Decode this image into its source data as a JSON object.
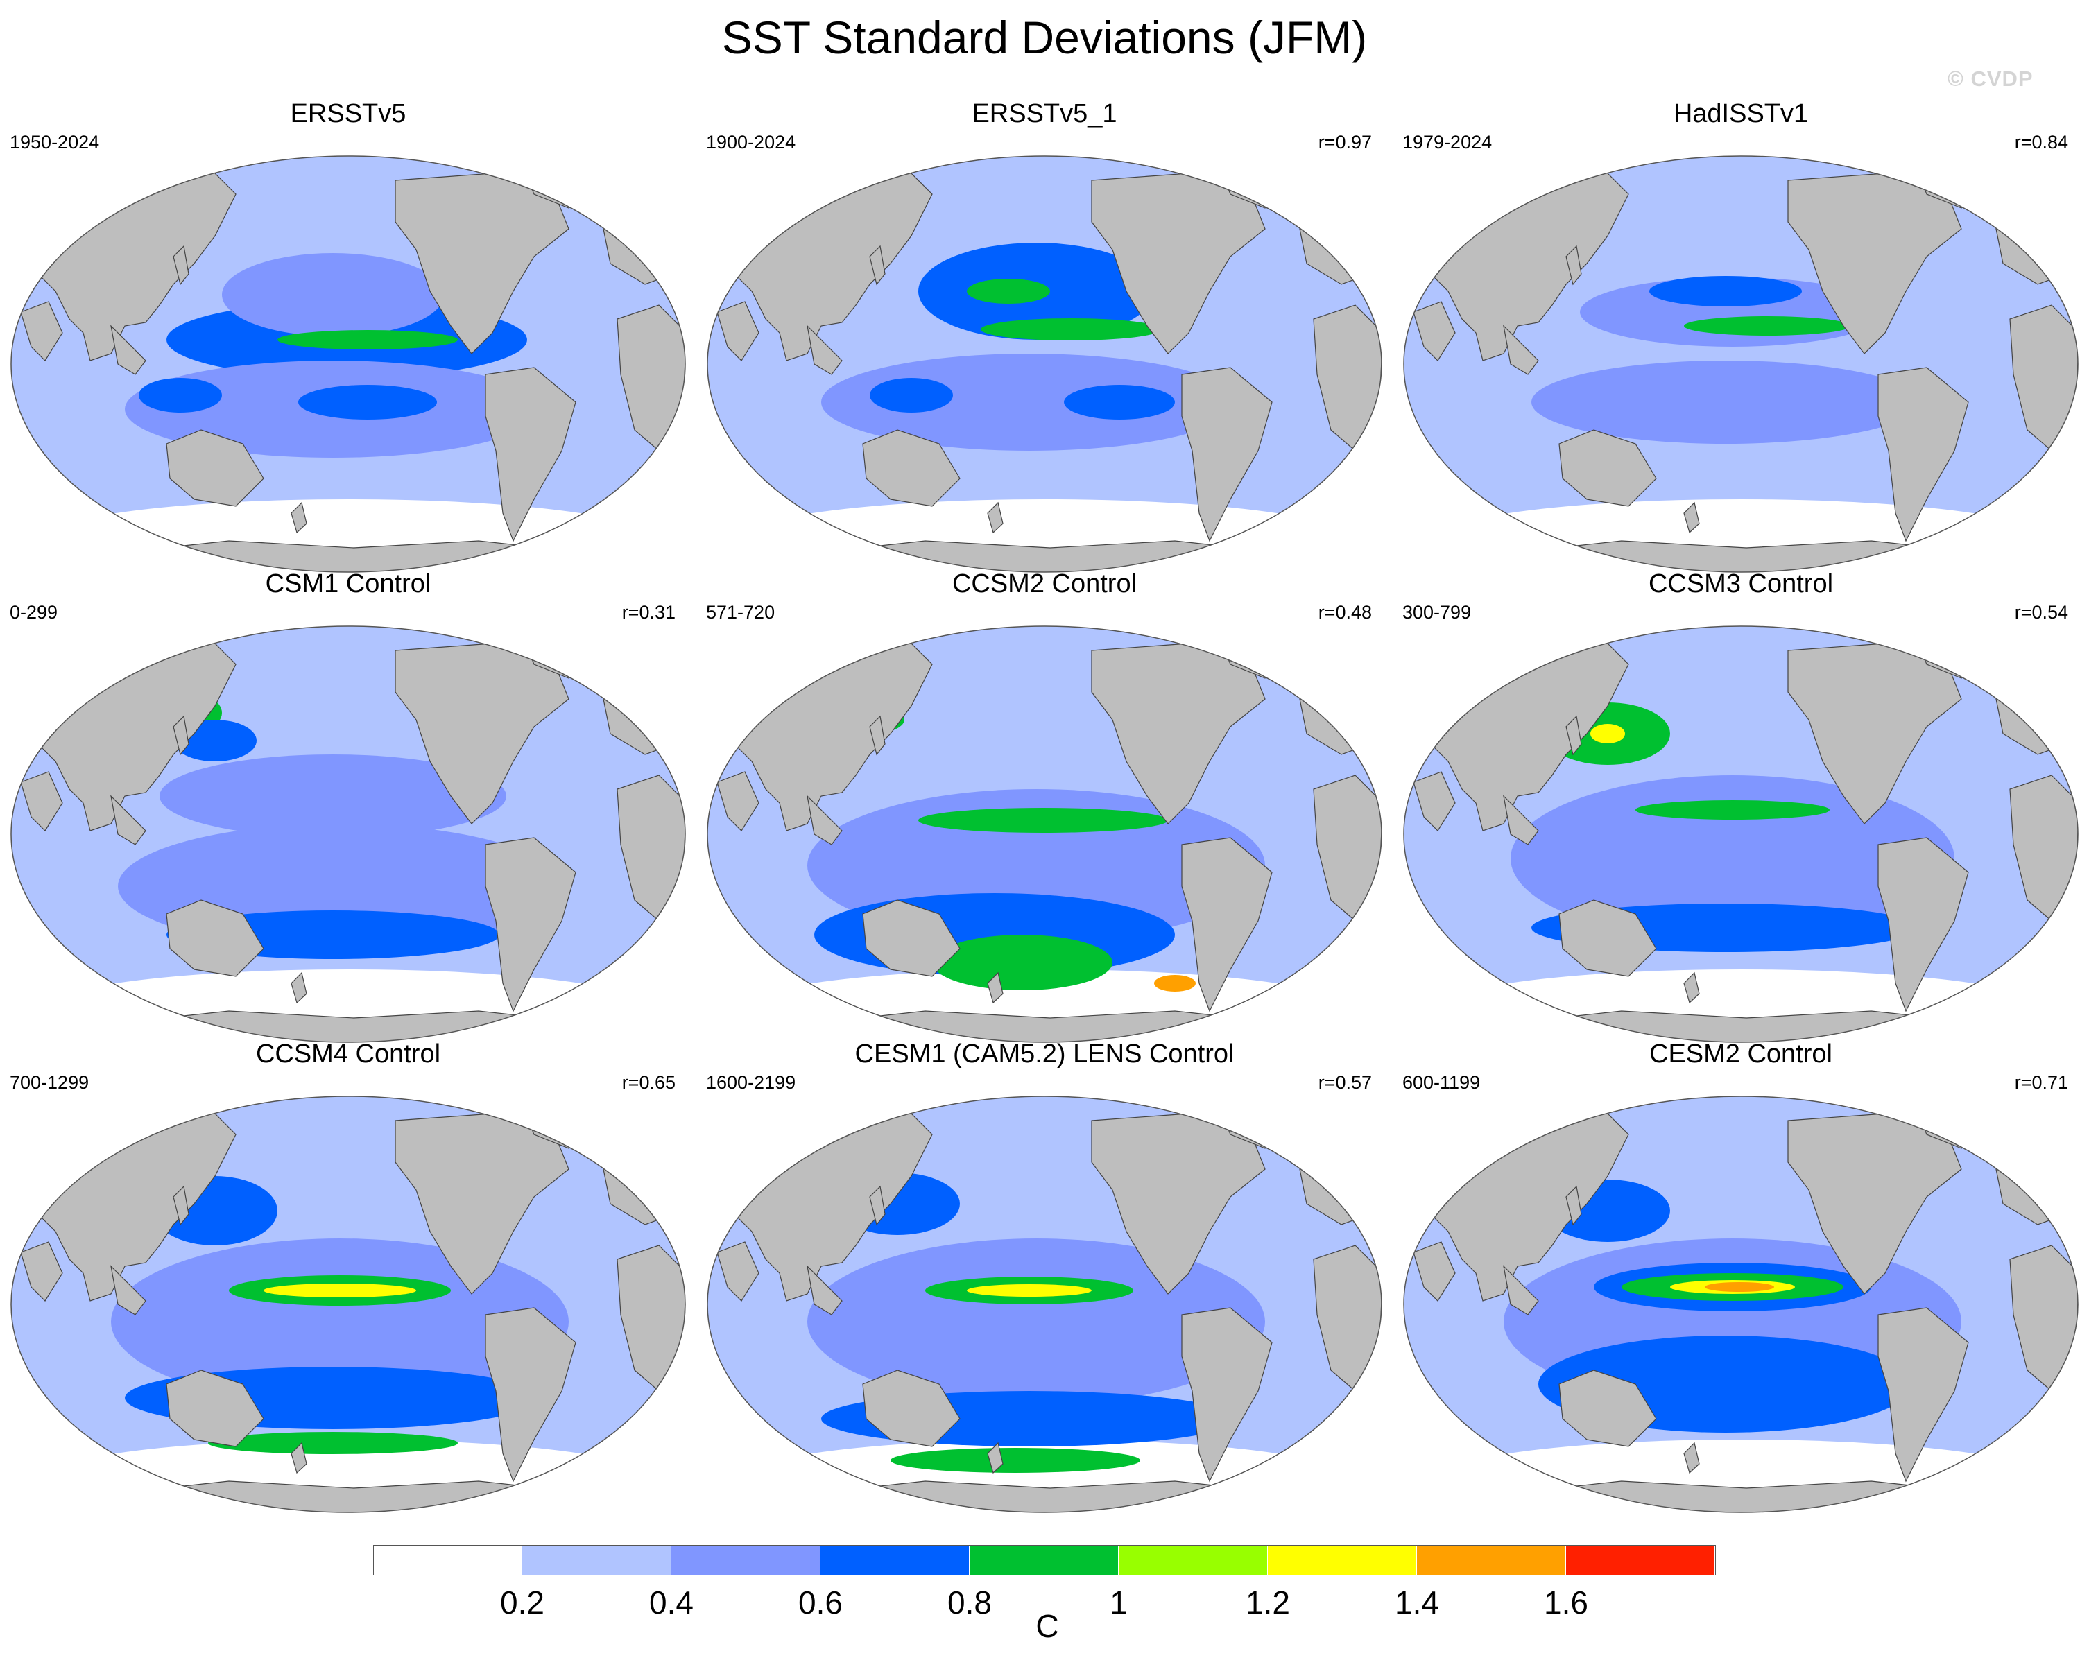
{
  "title": "SST Standard Deviations (JFM)",
  "watermark": "© CVDP",
  "panels": [
    {
      "title": "ERSSTv5",
      "years": "1950-2024",
      "r": ""
    },
    {
      "title": "ERSSTv5_1",
      "years": "1900-2024",
      "r": "r=0.97"
    },
    {
      "title": "HadISSTv1",
      "years": "1979-2024",
      "r": "r=0.84"
    },
    {
      "title": "CSM1 Control",
      "years": "0-299",
      "r": "r=0.31"
    },
    {
      "title": "CCSM2 Control",
      "years": "571-720",
      "r": "r=0.48"
    },
    {
      "title": "CCSM3 Control",
      "years": "300-799",
      "r": "r=0.54"
    },
    {
      "title": "CCSM4 Control",
      "years": "700-1299",
      "r": "r=0.65"
    },
    {
      "title": "CESM1 (CAM5.2) LENS Control",
      "years": "1600-2199",
      "r": "r=0.57"
    },
    {
      "title": "CESM2 Control",
      "years": "600-1199",
      "r": "r=0.71"
    }
  ],
  "colorbar": {
    "levels": [
      "0.2",
      "0.4",
      "0.6",
      "0.8",
      "1",
      "1.2",
      "1.4",
      "1.6"
    ],
    "colors": [
      "#ffffff",
      "#b0c4ff",
      "#8096ff",
      "#0060ff",
      "#00c030",
      "#98ff00",
      "#ffff00",
      "#ffa000",
      "#ff2000"
    ],
    "units": "C"
  },
  "colors": {
    "land": "#bebebe",
    "low": "#b0c4ff",
    "midlow": "#8096ff",
    "mid": "#0060ff",
    "green": "#00c030",
    "lime": "#98ff00",
    "yellow": "#ffff00",
    "orange": "#ffa000",
    "red": "#ff2000"
  }
}
